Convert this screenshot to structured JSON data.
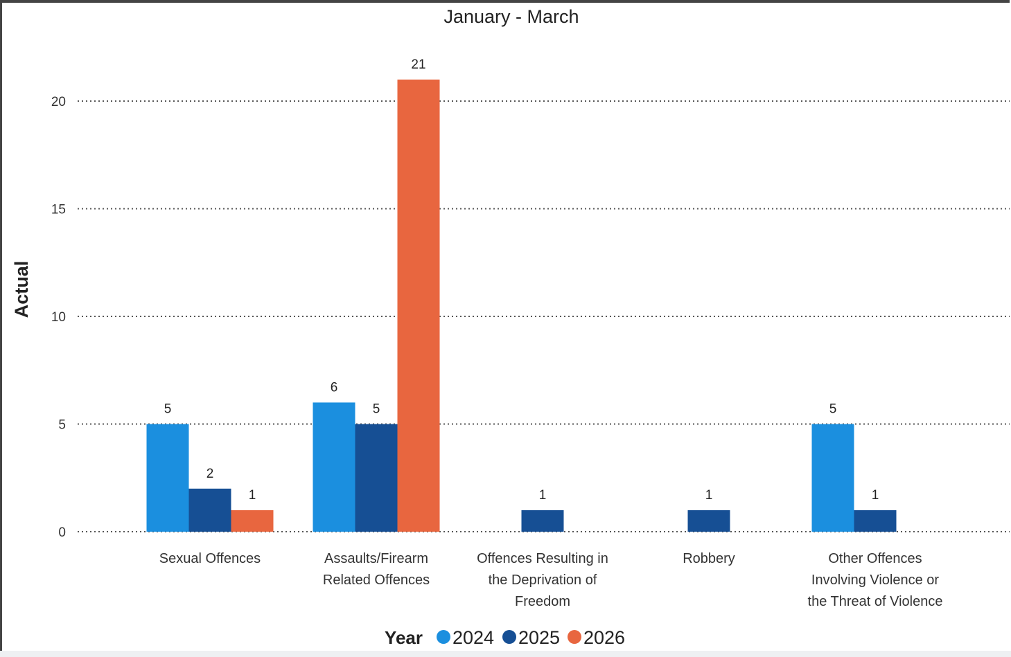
{
  "chart_data": {
    "type": "bar",
    "title": "January - March",
    "xlabel": "",
    "ylabel": "Actual",
    "ylim": [
      0,
      21.5
    ],
    "yticks": [
      0,
      5,
      10,
      15,
      20
    ],
    "grid": true,
    "legend_position": "bottom-center",
    "legend_title": "Year",
    "categories": [
      [
        "Sexual Offences"
      ],
      [
        "Assaults/Firearm",
        "Related Offences"
      ],
      [
        "Offences Resulting in",
        "the Deprivation of",
        "Freedom"
      ],
      [
        "Robbery"
      ],
      [
        "Other Offences",
        "Involving Violence or",
        "the Threat of Violence"
      ]
    ],
    "series": [
      {
        "name": "2024",
        "color": "#1b8fdf",
        "values": [
          5,
          6,
          null,
          null,
          5
        ]
      },
      {
        "name": "2025",
        "color": "#164f94",
        "values": [
          2,
          5,
          1,
          1,
          1
        ]
      },
      {
        "name": "2026",
        "color": "#e8663f",
        "values": [
          1,
          21,
          null,
          null,
          null
        ]
      }
    ]
  }
}
